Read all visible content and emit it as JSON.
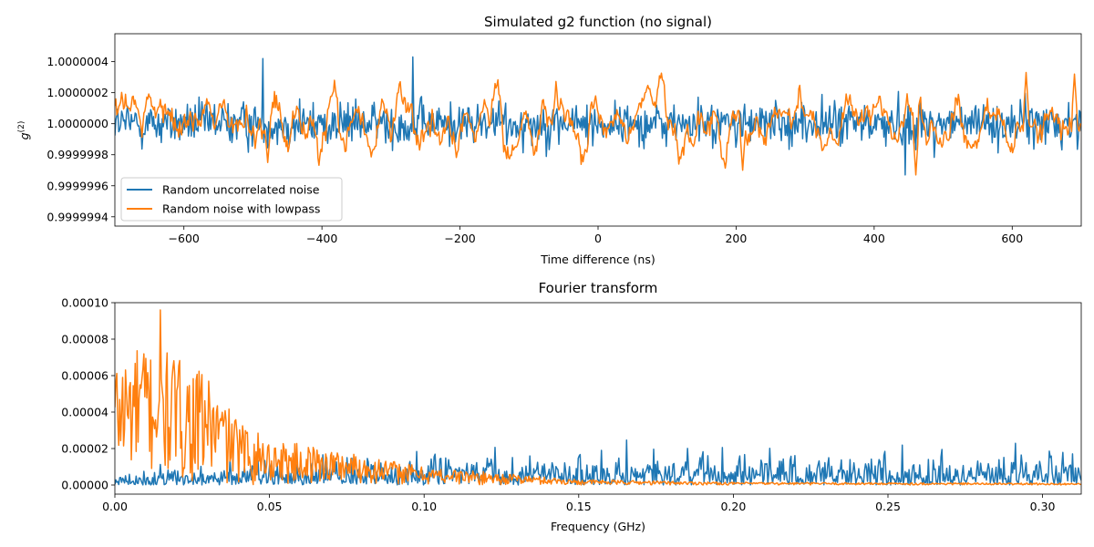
{
  "chart_data": [
    {
      "id": "top",
      "type": "line",
      "title": "Simulated g2 function (no signal)",
      "xlabel": "Time difference (ns)",
      "ylabel": "g",
      "ylabel_superscript": "(2)",
      "xlim": [
        -700,
        700
      ],
      "ylim": [
        0.99999934,
        1.00000058
      ],
      "xticks": [
        -600,
        -400,
        -200,
        0,
        200,
        400,
        600
      ],
      "xtick_labels": [
        "−600",
        "−400",
        "−200",
        "0",
        "200",
        "400",
        "600"
      ],
      "yticks": [
        0.9999994,
        0.9999996,
        0.9999998,
        1.0,
        1.0000002,
        1.0000004
      ],
      "ytick_labels": [
        "0.9999994",
        "0.9999996",
        "0.9999998",
        "1.0000000",
        "1.0000002",
        "1.0000004"
      ],
      "grid": false,
      "legend_position": "lower-left",
      "series": [
        {
          "name": "Random uncorrelated noise",
          "color": "#1f77b4",
          "x_range": [
            -700,
            700
          ],
          "n_points": 1000,
          "mean": 1.0,
          "amplitude": 1e-07,
          "min": 0.99999967,
          "max": 1.00000043,
          "notable_points": [
            [
              -485,
              1.00000042
            ],
            [
              -268,
              1.00000043
            ],
            [
              445,
              0.99999967
            ]
          ]
        },
        {
          "name": "Random noise with lowpass",
          "color": "#ff7f0e",
          "x_range": [
            -700,
            700
          ],
          "n_points": 1000,
          "mean": 1.0,
          "amplitude": 1.3e-07,
          "min": 0.99999967,
          "max": 1.00000033,
          "notable_points": [
            [
              -478,
              0.99999975
            ],
            [
              210,
              0.9999997
            ],
            [
              460,
              0.99999967
            ],
            [
              620,
              1.00000033
            ],
            [
              690,
              1.00000032
            ]
          ]
        }
      ]
    },
    {
      "id": "bottom",
      "type": "line",
      "title": "Fourier transform",
      "xlabel": "Frequency (GHz)",
      "ylabel": "",
      "xlim": [
        0,
        0.3125
      ],
      "ylim": [
        -5e-06,
        0.0001
      ],
      "xticks": [
        0.0,
        0.05,
        0.1,
        0.15,
        0.2,
        0.25,
        0.3
      ],
      "xtick_labels": [
        "0.00",
        "0.05",
        "0.10",
        "0.15",
        "0.20",
        "0.25",
        "0.30"
      ],
      "yticks": [
        0.0,
        2e-05,
        4e-05,
        6e-05,
        8e-05,
        0.0001
      ],
      "ytick_labels": [
        "0.00000",
        "0.00002",
        "0.00004",
        "0.00006",
        "0.00008",
        "0.00010"
      ],
      "grid": false,
      "series": [
        {
          "name": "Random uncorrelated noise",
          "color": "#1f77b4",
          "x_range": [
            0,
            0.3125
          ],
          "n_points": 1000,
          "typical_level": 1.2e-05,
          "peak_level": 3.5e-05
        },
        {
          "name": "Random noise with lowpass",
          "color": "#ff7f0e",
          "x_range": [
            0,
            0.3125
          ],
          "n_points": 1000,
          "peak": [
            0.0146,
            9.6e-05
          ],
          "envelope_points": [
            [
              0.0,
              7e-05
            ],
            [
              0.01,
              7.8e-05
            ],
            [
              0.02,
              7e-05
            ],
            [
              0.03,
              6e-05
            ],
            [
              0.04,
              3.5e-05
            ],
            [
              0.05,
              2.5e-05
            ],
            [
              0.07,
              2e-05
            ],
            [
              0.1,
              1e-05
            ],
            [
              0.15,
              3e-06
            ],
            [
              0.2,
              1.5e-06
            ],
            [
              0.3125,
              1e-06
            ]
          ]
        }
      ]
    }
  ]
}
